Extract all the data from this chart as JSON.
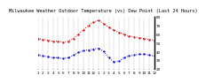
{
  "title": "Milwaukee Weather Outdoor Temperature (vs) Dew Point (Last 24 Hours)",
  "subtitle": "Last 24 Hours",
  "temp": [
    55,
    54,
    53,
    52,
    52,
    51,
    52,
    55,
    60,
    65,
    70,
    74,
    76,
    72,
    68,
    65,
    62,
    60,
    58,
    57,
    56,
    55,
    54,
    53
  ],
  "dew": [
    36,
    35,
    34,
    33,
    33,
    32,
    33,
    36,
    39,
    41,
    42,
    43,
    44,
    40,
    33,
    28,
    29,
    33,
    35,
    36,
    37,
    37,
    36,
    35
  ],
  "temp_color": "#cc0000",
  "dew_color": "#0000cc",
  "ylim": [
    20,
    80
  ],
  "yticks": [
    20,
    30,
    40,
    50,
    60,
    70,
    80
  ],
  "ytick_labels": [
    "20",
    "30",
    "40",
    "50",
    "60",
    "70",
    "80"
  ],
  "xlabel_times": [
    "1",
    "2",
    "3",
    "4",
    "5",
    "6",
    "7",
    "8",
    "9",
    "10",
    "11",
    "12",
    "1",
    "2",
    "3",
    "4",
    "5",
    "6",
    "7",
    "8",
    "9",
    "10",
    "11",
    "12"
  ],
  "bg_color": "#ffffff",
  "grid_color": "#999999",
  "title_fontsize": 3.8,
  "tick_fontsize": 3.0,
  "linewidth": 0.7,
  "markersize": 1.2
}
